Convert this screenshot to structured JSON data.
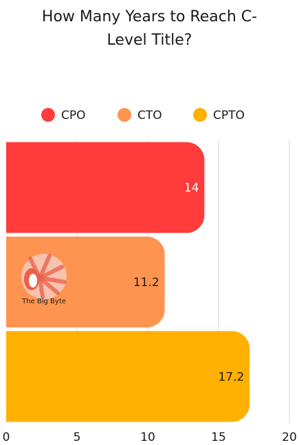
{
  "chart_data": {
    "type": "bar",
    "orientation": "horizontal",
    "title_lines": [
      "How Many Years to Reach C-",
      "Level Title?"
    ],
    "categories": [
      "CPO",
      "CTO",
      "CPTO"
    ],
    "values": [
      14,
      11.2,
      17.2
    ],
    "data_labels": [
      "14",
      "11.2",
      "17.2"
    ],
    "colors": [
      "#ff3b3b",
      "#ff9450",
      "#ffb000"
    ],
    "legend": {
      "placement": "top",
      "entries": [
        "CPO",
        "CTO",
        "CPTO"
      ]
    },
    "xlim": [
      0,
      20
    ],
    "xticks": [
      0,
      5,
      10,
      15,
      20
    ],
    "grid": true
  },
  "watermark": {
    "text": "The Big Byte"
  }
}
